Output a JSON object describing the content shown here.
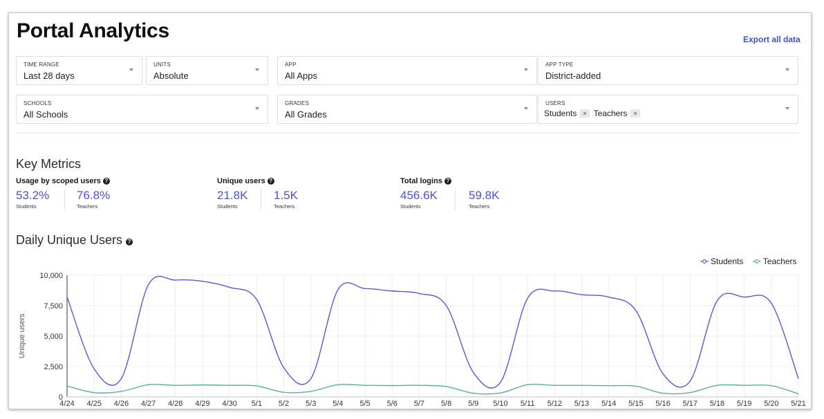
{
  "page": {
    "title": "Portal Analytics",
    "export_label": "Export all data"
  },
  "filters": {
    "time_range": {
      "label": "TIME RANGE",
      "value": "Last 28 days"
    },
    "units": {
      "label": "UNITS",
      "value": "Absolute"
    },
    "app": {
      "label": "APP",
      "value": "All Apps"
    },
    "app_type": {
      "label": "APP TYPE",
      "value": "District-added"
    },
    "schools": {
      "label": "SCHOOLS",
      "value": "All Schools"
    },
    "grades": {
      "label": "GRADES",
      "value": "All Grades"
    },
    "users": {
      "label": "USERS",
      "chips": [
        "Students",
        "Teachers"
      ],
      "remove_glyph": "×"
    }
  },
  "key_metrics": {
    "title": "Key Metrics",
    "help_glyph": "?",
    "groups": [
      {
        "title": "Usage by scoped users",
        "students": "53.2%",
        "teachers": "76.8%"
      },
      {
        "title": "Unique users",
        "students": "21.8K",
        "teachers": "1.5K"
      },
      {
        "title": "Total logins",
        "students": "456.6K",
        "teachers": "59.8K"
      }
    ],
    "students_label": "Students",
    "teachers_label": "Teachers"
  },
  "daily": {
    "title": "Daily Unique Users"
  },
  "colors": {
    "students": "#5458dd",
    "teachers": "#52b58f",
    "accent": "#3d4fd6"
  },
  "icons": {
    "help": "question-circle-icon",
    "caret": "chevron-down-icon",
    "remove": "close-icon"
  },
  "chart_data": {
    "type": "line",
    "ylabel": "Unique users",
    "xlabel": "",
    "ylim": [
      0,
      10000
    ],
    "yticks": [
      0,
      2500,
      5000,
      7500,
      10000
    ],
    "ytick_labels": [
      "0",
      "2,500",
      "5,000",
      "7,500",
      "10,000"
    ],
    "grid": true,
    "legend": "top-right",
    "x": [
      "4/24",
      "4/25",
      "4/26",
      "4/27",
      "4/28",
      "4/29",
      "4/30",
      "5/1",
      "5/2",
      "5/3",
      "5/4",
      "5/5",
      "5/6",
      "5/7",
      "5/8",
      "5/9",
      "5/10",
      "5/11",
      "5/12",
      "5/13",
      "5/14",
      "5/15",
      "5/16",
      "5/17",
      "5/18",
      "5/19",
      "5/20",
      "5/21"
    ],
    "series": [
      {
        "name": "Students",
        "values": [
          8200,
          2300,
          1500,
          9200,
          9600,
          9500,
          9000,
          8000,
          2400,
          1500,
          8800,
          8900,
          8700,
          8500,
          7500,
          2000,
          1200,
          8100,
          8700,
          8400,
          8200,
          7100,
          1900,
          1300,
          7900,
          8200,
          7700,
          1500
        ]
      },
      {
        "name": "Teachers",
        "values": [
          900,
          350,
          450,
          1000,
          950,
          980,
          950,
          900,
          380,
          450,
          1000,
          950,
          930,
          950,
          850,
          300,
          320,
          1000,
          950,
          950,
          920,
          880,
          300,
          350,
          950,
          950,
          920,
          250
        ]
      }
    ]
  }
}
